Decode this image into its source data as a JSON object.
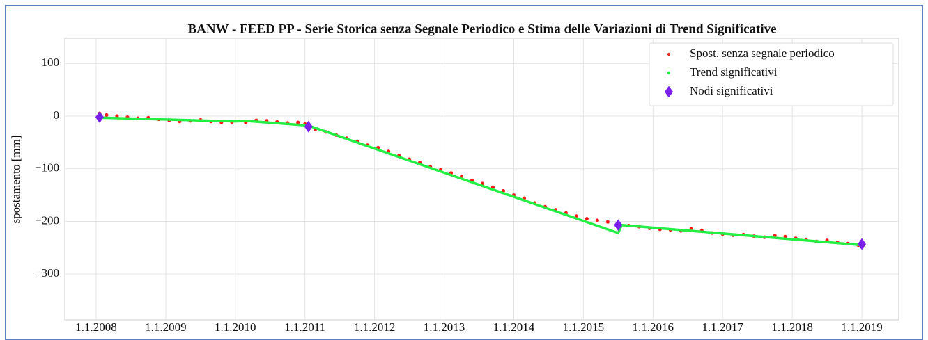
{
  "chart_data": {
    "type": "scatter",
    "title": "BANW - FEED PP - Serie Storica senza Segnale Periodico e Stima delle Variazioni di Trend Significative",
    "y_label": "spostamento [mm]",
    "xlim": [
      2007.55,
      2019.53
    ],
    "ylim": [
      -387,
      148
    ],
    "xticks": [
      {
        "value": 2008,
        "label": "1.1.2008"
      },
      {
        "value": 2009,
        "label": "1.1.2009"
      },
      {
        "value": 2010,
        "label": "1.1.2010"
      },
      {
        "value": 2011,
        "label": "1.1.2011"
      },
      {
        "value": 2012,
        "label": "1.1.2012"
      },
      {
        "value": 2013,
        "label": "1.1.2013"
      },
      {
        "value": 2014,
        "label": "1.1.2014"
      },
      {
        "value": 2015,
        "label": "1.1.2015"
      },
      {
        "value": 2016,
        "label": "1.1.2016"
      },
      {
        "value": 2017,
        "label": "1.1.2017"
      },
      {
        "value": 2018,
        "label": "1.1.2018"
      },
      {
        "value": 2019,
        "label": "1.1.2019"
      }
    ],
    "yticks": [
      100,
      0,
      {
        "value": -100,
        "label": "−100"
      },
      {
        "value": -200,
        "label": "−200"
      },
      {
        "value": -300,
        "label": "−300"
      }
    ],
    "grid": true,
    "legend": "upper right",
    "series": [
      {
        "name": "Spost. senza segnale periodico",
        "color": "#ff1a1a",
        "type": "scatter",
        "x": [
          2008.05,
          2008.15,
          2008.3,
          2008.45,
          2008.6,
          2008.75,
          2008.9,
          2009.05,
          2009.2,
          2009.35,
          2009.5,
          2009.65,
          2009.8,
          2009.95,
          2010.15,
          2010.3,
          2010.45,
          2010.6,
          2010.75,
          2010.9,
          2011.0,
          2011.15,
          2011.3,
          2011.45,
          2011.6,
          2011.75,
          2011.9,
          2012.05,
          2012.2,
          2012.35,
          2012.5,
          2012.65,
          2012.8,
          2012.95,
          2013.1,
          2013.25,
          2013.4,
          2013.55,
          2013.7,
          2013.85,
          2014.0,
          2014.15,
          2014.3,
          2014.45,
          2014.6,
          2014.75,
          2014.9,
          2015.05,
          2015.2,
          2015.35,
          2015.5,
          2015.65,
          2015.8,
          2015.95,
          2016.1,
          2016.25,
          2016.4,
          2016.55,
          2016.7,
          2016.85,
          2017.0,
          2017.15,
          2017.3,
          2017.45,
          2017.6,
          2017.75,
          2017.9,
          2018.05,
          2018.2,
          2018.35,
          2018.5,
          2018.65,
          2018.8,
          2018.95
        ],
        "values": [
          5,
          2,
          0,
          -2,
          -4,
          -3,
          -6,
          -8,
          -10,
          -9,
          -7,
          -10,
          -12,
          -11,
          -12,
          -8,
          -9,
          -11,
          -13,
          -12,
          -15,
          -25,
          -30,
          -36,
          -42,
          -48,
          -55,
          -60,
          -67,
          -75,
          -82,
          -88,
          -96,
          -102,
          -108,
          -115,
          -122,
          -128,
          -135,
          -142,
          -150,
          -156,
          -165,
          -172,
          -178,
          -184,
          -190,
          -195,
          -198,
          -201,
          -204,
          -208,
          -210,
          -213,
          -215,
          -216,
          -218,
          -214,
          -217,
          -222,
          -224,
          -226,
          -225,
          -228,
          -230,
          -227,
          -229,
          -232,
          -235,
          -238,
          -236,
          -240,
          -242,
          -245
        ]
      },
      {
        "name": "Trend significativi",
        "color": "#22ee44",
        "type": "line",
        "x": [
          2008.05,
          2010.0,
          2010.15,
          2011.05,
          2015.5,
          2015.55,
          2019.0
        ],
        "values": [
          -3,
          -10,
          -9,
          -18,
          -222,
          -207,
          -245
        ]
      },
      {
        "name": "Nodi significativi",
        "color": "#7a1fe8",
        "type": "diamond",
        "x": [
          2008.05,
          2011.05,
          2015.5,
          2019.0
        ],
        "values": [
          -2,
          -20,
          -207,
          -243
        ]
      }
    ]
  }
}
